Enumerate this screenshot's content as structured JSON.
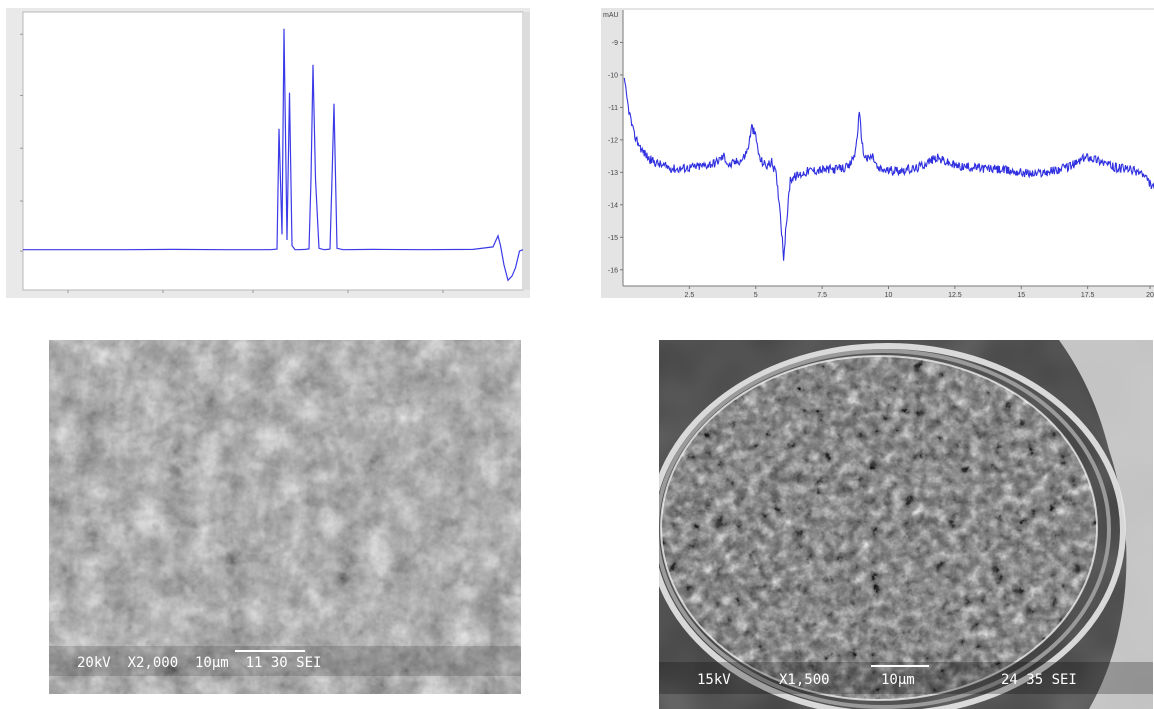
{
  "chart_data": [
    {
      "type": "line",
      "title": "",
      "xlabel": "",
      "ylabel": "",
      "grid": false,
      "xlim": [
        0,
        100
      ],
      "ylim": [
        0,
        100
      ],
      "series": [
        {
          "color": "#3a3ae8",
          "x": [
            0,
            10,
            20,
            30,
            40,
            49.5,
            50.8,
            51.2,
            51.8,
            52.2,
            52.8,
            53.3,
            53.8,
            54.4,
            55,
            56.5,
            57.2,
            57.6,
            58,
            58.5,
            59.2,
            60.2,
            61,
            61.4,
            61.8,
            62.2,
            62.8,
            64,
            70,
            80,
            90,
            94,
            95,
            95.5,
            96.2,
            97,
            97.8,
            98.5,
            99.3,
            100
          ],
          "y": [
            14.5,
            14.5,
            14.5,
            14.6,
            14.5,
            14.5,
            14.7,
            58,
            20,
            94,
            18,
            71,
            16,
            14.5,
            14.5,
            14.6,
            14.8,
            40,
            81,
            40,
            15,
            14.5,
            14.6,
            14.8,
            40,
            67,
            15,
            14.5,
            14.6,
            14.5,
            14.6,
            15.5,
            19.5,
            16,
            9,
            3.5,
            5,
            8,
            14,
            14.5
          ]
        }
      ]
    },
    {
      "type": "line",
      "title": "",
      "xlabel": "",
      "ylabel": "",
      "y_unit": "mAU",
      "grid": false,
      "xlim": [
        0,
        20
      ],
      "ylim": [
        -16.5,
        -8
      ],
      "xticks": [
        "2.5",
        "5",
        "7.5",
        "10",
        "12.5",
        "15",
        "17.5",
        "20"
      ],
      "yticks": [
        "-9",
        "-10",
        "-11",
        "-12",
        "-13",
        "-14",
        "-15",
        "-16"
      ],
      "series": [
        {
          "color": "#2f2fe0",
          "x": [
            0.05,
            0.2,
            0.4,
            0.7,
            1.0,
            1.5,
            2.0,
            2.5,
            3.0,
            3.5,
            3.8,
            4.0,
            4.2,
            4.5,
            4.7,
            4.85,
            5.0,
            5.15,
            5.4,
            5.6,
            5.75,
            5.9,
            6.05,
            6.3,
            7.0,
            8.0,
            8.5,
            8.75,
            8.9,
            9.05,
            9.2,
            9.4,
            9.6,
            10.0,
            11.0,
            11.8,
            12.5,
            14.0,
            15.5,
            16.5,
            17.0,
            17.5,
            18.0,
            18.5,
            19.0,
            19.5,
            20.0
          ],
          "y": [
            -10.2,
            -11.0,
            -11.8,
            -12.3,
            -12.6,
            -12.8,
            -12.9,
            -12.85,
            -12.8,
            -12.7,
            -12.5,
            -12.8,
            -12.7,
            -12.6,
            -12.3,
            -11.6,
            -11.9,
            -12.6,
            -12.8,
            -12.7,
            -13.0,
            -14.0,
            -15.6,
            -13.2,
            -12.95,
            -12.9,
            -12.85,
            -12.4,
            -11.2,
            -12.4,
            -12.6,
            -12.5,
            -12.9,
            -12.95,
            -12.9,
            -12.55,
            -12.8,
            -12.9,
            -13.05,
            -12.9,
            -12.75,
            -12.5,
            -12.65,
            -12.85,
            -12.9,
            -13.0,
            -13.5
          ]
        }
      ]
    }
  ],
  "images": {
    "sem_left": {
      "label": "20kV  X2,000  10μm  11 30 SEI"
    },
    "sem_right": {
      "voltage": "15kV",
      "magnification": "X1,500",
      "scale": "10μm",
      "session": "24 35 SEI"
    }
  },
  "colors": {
    "trace_left": "#3a3ae8",
    "trace_right": "#2f2fe0",
    "frame": "#c8c8c8"
  }
}
